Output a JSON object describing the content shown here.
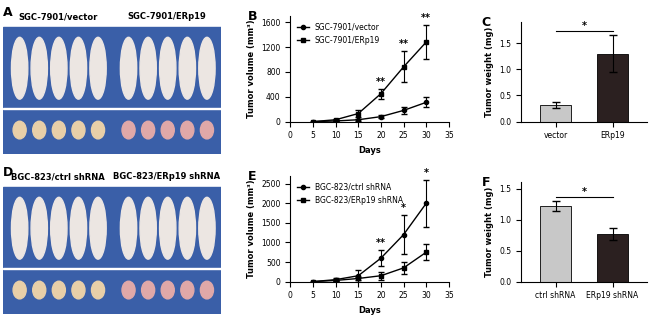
{
  "chart_data": [
    {
      "type": "image",
      "title": "A",
      "categories": [
        "SGC-7901/vector",
        "SGC-7901/ERp19"
      ]
    },
    {
      "type": "line",
      "title": "B",
      "x_label": "Days",
      "y_label": "Tumor volume (mm³)",
      "x": [
        5,
        10,
        15,
        20,
        25,
        30
      ],
      "series": [
        {
          "name": "SGC-7901/vector",
          "color": "#000000",
          "marker": "circle",
          "line_style": "solid",
          "values": [
            0,
            10,
            30,
            80,
            180,
            310
          ],
          "errors": [
            0,
            5,
            15,
            30,
            60,
            80
          ]
        },
        {
          "name": "SGC-7901/ERp19",
          "color": "#000000",
          "marker": "square",
          "line_style": "solid",
          "values": [
            0,
            30,
            130,
            450,
            880,
            1280
          ],
          "errors": [
            0,
            10,
            50,
            80,
            250,
            280
          ]
        }
      ],
      "xlim": [
        0,
        35
      ],
      "xticks": [
        0,
        5,
        10,
        15,
        20,
        25,
        30,
        35
      ],
      "ylim": [
        0,
        1700
      ],
      "yticks": [
        0,
        400,
        800,
        1200,
        1600
      ],
      "legend": "upper left",
      "annotations": [
        {
          "text": "**",
          "x": 20
        },
        {
          "text": "**",
          "x": 25
        },
        {
          "text": "**",
          "x": 30
        }
      ]
    },
    {
      "type": "bar",
      "title": "C",
      "y_label": "Tumor weight (mg)",
      "categories": [
        "vector",
        "ERp19"
      ],
      "values": [
        0.32,
        1.3
      ],
      "errors": [
        0.05,
        0.35
      ],
      "colors": [
        "#c8c8c8",
        "#2b2020"
      ],
      "ylim": [
        0,
        1.9
      ],
      "yticks": [
        {
          "value": 0,
          "label": "0.0"
        },
        0.5,
        {
          "value": 1,
          "label": "1.0"
        },
        1.5
      ],
      "annotations": [
        {
          "text": "*"
        }
      ]
    },
    {
      "type": "image",
      "title": "D",
      "categories": [
        "BGC-823/ctrl shRNA",
        "BGC-823/ERp19 shRNA"
      ]
    },
    {
      "type": "line",
      "title": "E",
      "x_label": "Days",
      "y_label": "Tumor volume (mm³)",
      "x": [
        5,
        10,
        15,
        20,
        25,
        30
      ],
      "series": [
        {
          "name": "BGC-823/ctrl shRNA",
          "color": "#000000",
          "marker": "circle",
          "line_style": "solid",
          "values": [
            0,
            50,
            150,
            600,
            1200,
            2000
          ],
          "errors": [
            0,
            30,
            150,
            200,
            500,
            600
          ]
        },
        {
          "name": "BGC-823/ERp19 shRNA",
          "color": "#000000",
          "marker": "square",
          "line_style": "solid",
          "values": [
            0,
            30,
            80,
            150,
            350,
            750
          ],
          "errors": [
            0,
            20,
            50,
            100,
            150,
            200
          ]
        }
      ],
      "xlim": [
        0,
        35
      ],
      "xticks": [
        0,
        5,
        10,
        15,
        20,
        25,
        30,
        35
      ],
      "ylim": [
        0,
        2700
      ],
      "yticks": [
        0,
        500,
        1000,
        1500,
        2000,
        2500
      ],
      "legend": "upper left",
      "annotations": [
        {
          "text": "**",
          "x": 20
        },
        {
          "text": "*",
          "x": 25
        },
        {
          "text": "*",
          "x": 30
        }
      ]
    },
    {
      "type": "bar",
      "title": "F",
      "y_label": "Tumor weight (mg)",
      "categories": [
        "ctrl shRNA",
        "ERp19 shRNA"
      ],
      "values": [
        1.22,
        0.77
      ],
      "errors": [
        0.08,
        0.1
      ],
      "colors": [
        "#c8c8c8",
        "#2b2020"
      ],
      "ylim": [
        0,
        1.6
      ],
      "yticks": [
        {
          "value": 0,
          "label": "0.0"
        },
        0.5,
        {
          "value": 1,
          "label": "1.0"
        },
        1.5
      ],
      "annotations": [
        {
          "text": "*"
        }
      ]
    }
  ]
}
